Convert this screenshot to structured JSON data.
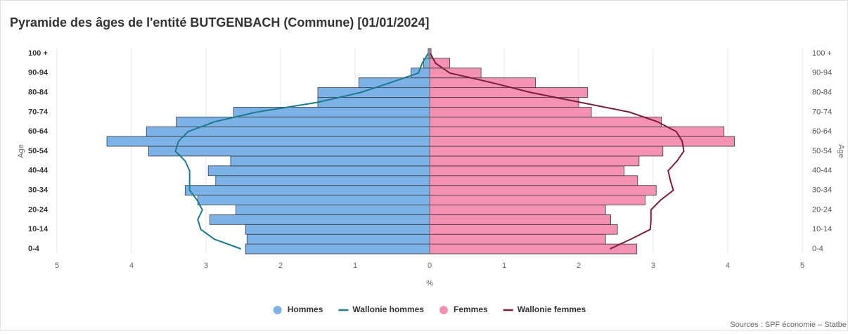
{
  "chart_data": {
    "type": "pyramid",
    "title": "Pyramide des âges de l'entité BUTGENBACH (Commune) [01/01/2024]",
    "x_label": "%",
    "y_label": "Age",
    "y2_label": "Age",
    "source": "Sources : SPF économie – Statbe",
    "categories": [
      "0-4",
      null,
      "10-14",
      null,
      "20-24",
      null,
      "30-34",
      null,
      "40-44",
      null,
      "50-54",
      null,
      "60-64",
      null,
      "70-74",
      null,
      "80-84",
      null,
      "90-94",
      null,
      "100 +"
    ],
    "xlim": [
      -5,
      5
    ],
    "xticks": [
      {
        "value": -5,
        "label": "5"
      },
      {
        "value": -4,
        "label": "4"
      },
      {
        "value": -3,
        "label": "3"
      },
      {
        "value": -2,
        "label": "2"
      },
      {
        "value": -1,
        "label": "1"
      },
      0,
      1,
      2,
      3,
      4,
      5
    ],
    "grid": true,
    "legend": "bottom",
    "series": [
      {
        "name": "Hommes",
        "type": "bar",
        "side": "left",
        "color": "#7cb2e8",
        "values": [
          2.47,
          2.45,
          2.47,
          2.95,
          2.6,
          3.11,
          3.28,
          2.87,
          2.97,
          2.67,
          3.77,
          4.33,
          3.8,
          3.4,
          2.63,
          1.5,
          1.5,
          0.95,
          0.25,
          0.08,
          0.02
        ]
      },
      {
        "name": "Wallonie hommes",
        "type": "line",
        "side": "left",
        "color": "#1b7b8c",
        "values": [
          2.53,
          2.89,
          3.07,
          3.11,
          3.05,
          3.12,
          3.22,
          3.22,
          3.22,
          3.28,
          3.41,
          3.37,
          3.24,
          2.89,
          2.32,
          1.5,
          0.93,
          0.53,
          0.15,
          0.1,
          0.02
        ]
      },
      {
        "name": "Femmes",
        "type": "bar",
        "side": "right",
        "color": "#f591b3",
        "values": [
          2.78,
          2.36,
          2.52,
          2.43,
          2.36,
          2.89,
          3.04,
          2.79,
          2.61,
          2.81,
          3.13,
          4.09,
          3.95,
          3.11,
          2.17,
          2.0,
          2.12,
          1.42,
          0.69,
          0.27,
          0.02
        ]
      },
      {
        "name": "Wallonie femmes",
        "type": "line",
        "side": "right",
        "color": "#7b1e40",
        "values": [
          2.42,
          2.7,
          2.96,
          2.97,
          2.97,
          3.1,
          3.27,
          3.23,
          3.2,
          3.32,
          3.41,
          3.39,
          3.31,
          3.06,
          2.68,
          2.02,
          1.36,
          0.84,
          0.27,
          0.08,
          0.01
        ]
      }
    ]
  }
}
